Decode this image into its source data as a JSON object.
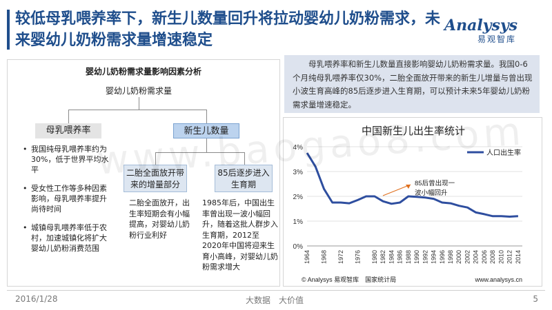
{
  "header": {
    "title": "较低母乳喂养率下，新生儿数量回升将拉动婴幼儿奶粉需求，未来婴幼儿奶粉需求量增速稳定",
    "logo_text": "Analysys",
    "logo_cn": "易观智库"
  },
  "tree": {
    "title": "婴幼儿奶粉需求量影响因素分析",
    "root": "婴幼儿奶粉需求量",
    "left_node": "母乳喂养率",
    "right_node": "新生儿数量",
    "sub1": "二胎全面放开带来的增量部分",
    "sub2": "85后逐步进入生育期",
    "bullets": [
      "我国纯母乳喂养率约为30%，低于世界平均水平",
      "受女性工作等多种因素影响，母乳喂养率提升尚待时间",
      "城镇母乳喂养率低于农村，加速城镇化将扩大婴幼儿奶粉消费范围"
    ],
    "desc1": "二胎全面放开，出生率短期会有小幅提高，对婴幼儿奶粉行业利好",
    "desc2": "1985年后，中国出生率曾出现一波小幅回升，随着这批人群步入生育期，2012至2020年中国将迎来生育小高峰，对婴幼儿奶粉需求增大"
  },
  "info": {
    "text": "母乳喂养率和新生儿数量直接影响婴幼儿奶粉需求量。我国0-6个月纯母乳喂养率仅30%，二胎全面放开带来的新生儿增量与曾出现小波生育高峰的85后逐步进入生育期，可以预计未来5年婴幼儿奶粉需求量增速稳定。"
  },
  "chart_data": {
    "type": "line",
    "title": "中国新生儿出生率统计",
    "xlabel": "",
    "ylabel": "",
    "ylim": [
      0,
      4
    ],
    "xlim": [
      1964,
      2015
    ],
    "y_ticks": [
      "0%",
      "1%",
      "2%",
      "3%",
      "4%"
    ],
    "x_ticks": [
      "1964",
      "1968",
      "1972",
      "1976",
      "1980",
      "1982",
      "1984",
      "1986",
      "1988",
      "1990",
      "1992",
      "1994",
      "1996",
      "1998",
      "2000",
      "2002",
      "2004",
      "2006",
      "2008",
      "2010",
      "2012",
      "2014"
    ],
    "legend_position": "top-right",
    "series": [
      {
        "name": "人口出生率",
        "color": "#2e4e9f",
        "x": [
          1964,
          1966,
          1968,
          1970,
          1972,
          1974,
          1976,
          1978,
          1980,
          1982,
          1984,
          1986,
          1988,
          1990,
          1992,
          1994,
          1996,
          1998,
          2000,
          2002,
          2004,
          2006,
          2008,
          2010,
          2012,
          2014
        ],
        "y": [
          3.75,
          3.2,
          2.3,
          1.75,
          1.75,
          1.72,
          1.85,
          2.0,
          2.0,
          1.8,
          1.7,
          1.75,
          2.0,
          1.98,
          1.95,
          1.9,
          1.75,
          1.72,
          1.62,
          1.55,
          1.35,
          1.28,
          1.2,
          1.2,
          1.18,
          1.2
        ]
      }
    ],
    "annotation": "85后曾出现一波小幅回升",
    "source": "© Analysys 易观智库　国家统计局",
    "url": "www.analysys.cn"
  },
  "footer": {
    "date": "2016/1/28",
    "middle": "大数据　大价值",
    "page": "5"
  },
  "watermark": "www.baogao8.com"
}
